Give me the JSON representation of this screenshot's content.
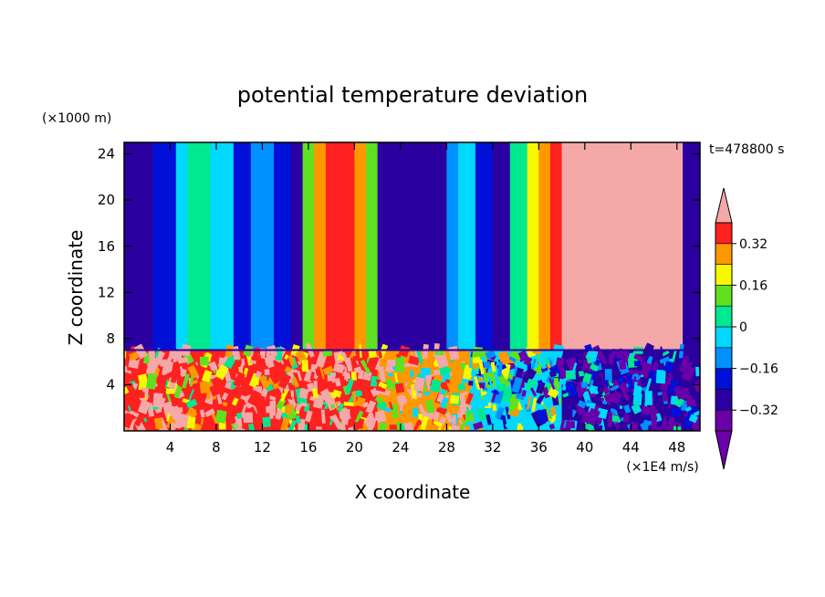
{
  "chart_data": {
    "type": "heatmap",
    "title": "potential temperature deviation",
    "xlabel": "X coordinate",
    "ylabel": "Z coordinate",
    "x_units": "(×1E4 m/s)",
    "y_units": "(×1000 m)",
    "time_label": "t=478800 s",
    "xlim": [
      0,
      50
    ],
    "ylim": [
      0,
      25
    ],
    "x_ticks": [
      4,
      8,
      12,
      16,
      20,
      24,
      28,
      32,
      36,
      40,
      44,
      48
    ],
    "y_ticks": [
      4,
      8,
      12,
      16,
      20,
      24
    ],
    "colorbar": {
      "levels": [
        -0.4,
        -0.32,
        -0.24,
        -0.16,
        -0.08,
        0,
        0.08,
        0.16,
        0.24,
        0.32,
        0.4
      ],
      "labels": [
        "0.32",
        "0.16",
        "0",
        "−0.16",
        "−0.32"
      ],
      "label_values": [
        0.32,
        0.16,
        0,
        -0.16,
        -0.32
      ],
      "colors": [
        "#6a00a8",
        "#2a00a0",
        "#0010d8",
        "#0090ff",
        "#00d8ff",
        "#00e890",
        "#60e020",
        "#f8f800",
        "#ff9800",
        "#ff2020",
        "#f4a8a8"
      ],
      "extend": "both"
    },
    "upper_columns": [
      {
        "x0": 0.0,
        "x1": 2.5,
        "value": -0.36
      },
      {
        "x0": 2.5,
        "x1": 4.5,
        "value": -0.28
      },
      {
        "x0": 4.5,
        "x1": 5.5,
        "value": -0.12
      },
      {
        "x0": 5.5,
        "x1": 7.5,
        "value": -0.04
      },
      {
        "x0": 7.5,
        "x1": 9.5,
        "value": -0.12
      },
      {
        "x0": 9.5,
        "x1": 11.0,
        "value": -0.28
      },
      {
        "x0": 11.0,
        "x1": 13.0,
        "value": -0.2
      },
      {
        "x0": 13.0,
        "x1": 14.5,
        "value": -0.28
      },
      {
        "x0": 14.5,
        "x1": 15.5,
        "value": -0.36
      },
      {
        "x0": 15.5,
        "x1": 16.5,
        "value": 0.04
      },
      {
        "x0": 16.5,
        "x1": 17.5,
        "value": 0.2
      },
      {
        "x0": 17.5,
        "x1": 20.0,
        "value": 0.28
      },
      {
        "x0": 20.0,
        "x1": 21.0,
        "value": 0.2
      },
      {
        "x0": 21.0,
        "x1": 22.0,
        "value": 0.04
      },
      {
        "x0": 22.0,
        "x1": 28.0,
        "value": -0.36
      },
      {
        "x0": 28.0,
        "x1": 29.0,
        "value": -0.2
      },
      {
        "x0": 29.0,
        "x1": 30.5,
        "value": -0.12
      },
      {
        "x0": 30.5,
        "x1": 32.0,
        "value": -0.28
      },
      {
        "x0": 32.0,
        "x1": 33.5,
        "value": -0.36
      },
      {
        "x0": 33.5,
        "x1": 35.0,
        "value": -0.04
      },
      {
        "x0": 35.0,
        "x1": 36.0,
        "value": 0.12
      },
      {
        "x0": 36.0,
        "x1": 37.0,
        "value": 0.2
      },
      {
        "x0": 37.0,
        "x1": 38.0,
        "value": 0.28
      },
      {
        "x0": 38.0,
        "x1": 48.5,
        "value": 0.4
      },
      {
        "x0": 48.5,
        "x1": 50.0,
        "value": -0.36
      }
    ],
    "lower_layer_top": 7,
    "lower_layer_regions": [
      {
        "x0": 0,
        "x1": 22,
        "value": 0.28
      },
      {
        "x0": 22,
        "x1": 30,
        "value": 0.2
      },
      {
        "x0": 30,
        "x1": 38,
        "value": -0.12
      },
      {
        "x0": 38,
        "x1": 50,
        "value": -0.36
      }
    ]
  }
}
